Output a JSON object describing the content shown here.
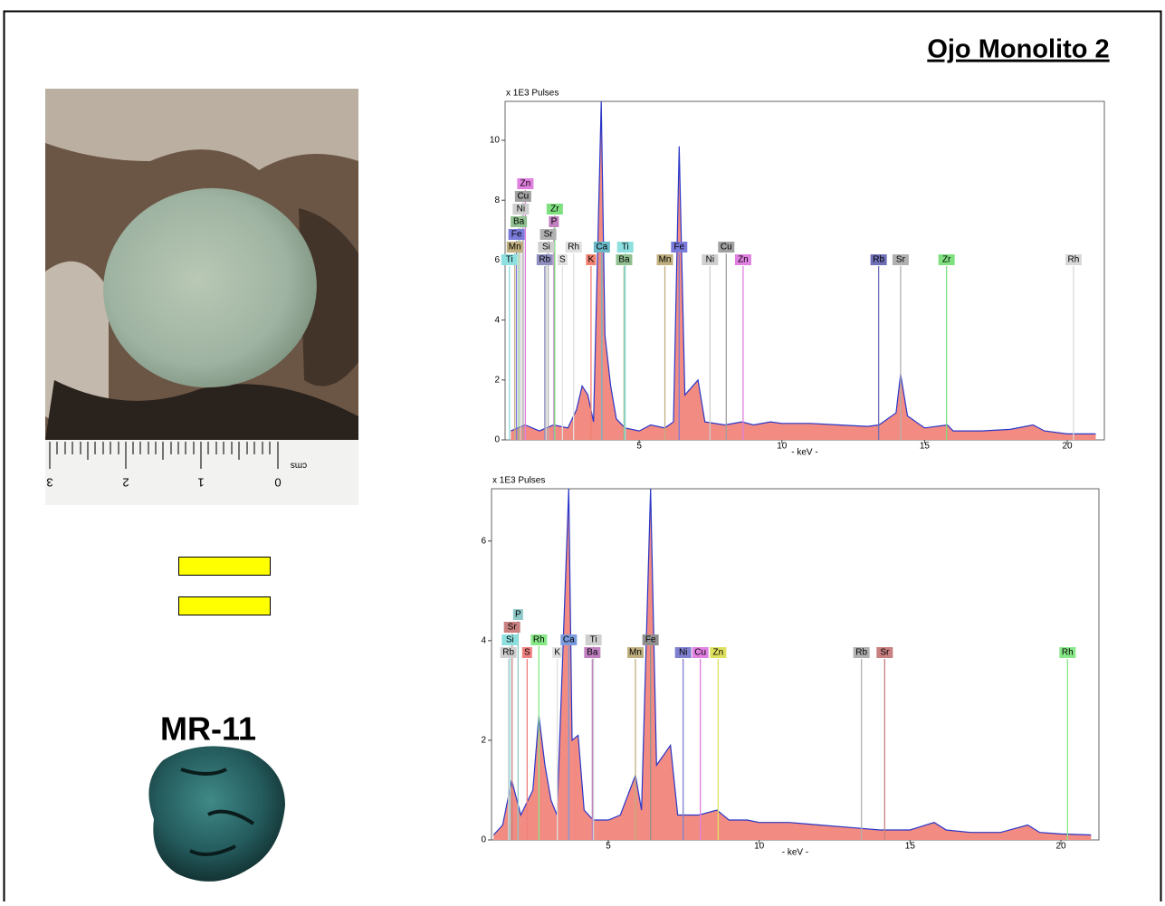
{
  "title": "Ojo Monolito 2",
  "sample_label": "MR-11",
  "ruler": {
    "unit": "cms",
    "labels": [
      "0",
      "1",
      "2",
      "3"
    ]
  },
  "chart_data": [
    {
      "type": "spectrum",
      "y_label": "x 1E3 Pulses",
      "x_label": "- keV -",
      "xlim": [
        0.3,
        21.3
      ],
      "ylim": [
        0,
        11.3
      ],
      "xticks": [
        5,
        10,
        15,
        20
      ],
      "yticks": [
        0,
        2,
        4,
        6,
        8,
        10
      ],
      "x": [
        0.5,
        1,
        1.5,
        2,
        2.5,
        2.8,
        3.0,
        3.2,
        3.4,
        3.67,
        3.8,
        4.0,
        4.2,
        4.5,
        5,
        5.4,
        5.9,
        6.2,
        6.4,
        6.6,
        7.06,
        7.3,
        8,
        8.6,
        9,
        9.6,
        10,
        11,
        12,
        13,
        13.4,
        14.0,
        14.16,
        14.4,
        15,
        15.8,
        16,
        17,
        18,
        18.8,
        19.2,
        20,
        21
      ],
      "series": [
        {
          "color": "#f28b82",
          "line_color": "#2a36c8",
          "values": [
            0.3,
            0.5,
            0.3,
            0.5,
            0.4,
            1.0,
            1.8,
            1.5,
            0.6,
            11.3,
            3.5,
            1.8,
            0.7,
            0.4,
            0.3,
            0.5,
            0.4,
            0.6,
            9.8,
            1.5,
            2.0,
            0.6,
            0.5,
            0.6,
            0.5,
            0.6,
            0.55,
            0.55,
            0.5,
            0.45,
            0.5,
            0.9,
            2.2,
            0.8,
            0.4,
            0.5,
            0.3,
            0.3,
            0.35,
            0.5,
            0.3,
            0.2,
            0.2
          ]
        }
      ],
      "markers": [
        {
          "label": "Ti",
          "x": 0.45,
          "color": "#8ee0e0"
        },
        {
          "label": "Mn",
          "x": 0.64,
          "color": "#c0b080"
        },
        {
          "label": "Fe",
          "x": 0.7,
          "color": "#7b7bdc"
        },
        {
          "label": "Ba",
          "x": 0.78,
          "color": "#90c090"
        },
        {
          "label": "Ni",
          "x": 0.85,
          "color": "#cfcfcf"
        },
        {
          "label": "Cu",
          "x": 0.93,
          "color": "#a0a0a0"
        },
        {
          "label": "Zn",
          "x": 1.01,
          "color": "#e080e0"
        },
        {
          "label": "Rb",
          "x": 1.69,
          "color": "#9090c0"
        },
        {
          "label": "Si",
          "x": 1.74,
          "color": "#cfcfcf"
        },
        {
          "label": "Sr",
          "x": 1.81,
          "color": "#b0b0b0"
        },
        {
          "label": "P",
          "x": 2.01,
          "color": "#c080c0"
        },
        {
          "label": "Zr",
          "x": 2.04,
          "color": "#80e080"
        },
        {
          "label": "S",
          "x": 2.31,
          "color": "#e0e0e0"
        },
        {
          "label": "Rh",
          "x": 2.7,
          "color": "#e0e0e0"
        },
        {
          "label": "K",
          "x": 3.31,
          "color": "#f08070"
        },
        {
          "label": "Ca",
          "x": 3.69,
          "color": "#6ab8c8"
        },
        {
          "label": "Ba",
          "x": 4.47,
          "color": "#90c090"
        },
        {
          "label": "Ti",
          "x": 4.51,
          "color": "#8ee0e0"
        },
        {
          "label": "Mn",
          "x": 5.9,
          "color": "#c0b080"
        },
        {
          "label": "Fe",
          "x": 6.4,
          "color": "#7b7bdc"
        },
        {
          "label": "Ni",
          "x": 7.48,
          "color": "#cfcfcf"
        },
        {
          "label": "Cu",
          "x": 8.05,
          "color": "#a0a0a0"
        },
        {
          "label": "Zn",
          "x": 8.64,
          "color": "#e080e0"
        },
        {
          "label": "Rb",
          "x": 13.39,
          "color": "#7070b8"
        },
        {
          "label": "Sr",
          "x": 14.16,
          "color": "#b0b0b0"
        },
        {
          "label": "Zr",
          "x": 15.77,
          "color": "#80e080"
        },
        {
          "label": "Rh",
          "x": 20.22,
          "color": "#d8d8d8"
        }
      ]
    },
    {
      "type": "spectrum",
      "y_label": "x 1E3 Pulses",
      "x_label": "- keV -",
      "xlim": [
        1.13,
        21.26
      ],
      "ylim": [
        0,
        7.05
      ],
      "xticks": [
        5,
        10,
        15,
        20
      ],
      "yticks": [
        0,
        2,
        4,
        6
      ],
      "x": [
        1.2,
        1.5,
        1.8,
        2.1,
        2.5,
        2.7,
        2.9,
        3.1,
        3.3,
        3.69,
        3.8,
        4.0,
        4.2,
        4.5,
        5,
        5.4,
        5.9,
        6.1,
        6.4,
        6.6,
        7.06,
        7.3,
        8,
        8.6,
        9,
        9.6,
        10,
        11,
        12,
        13,
        14,
        15,
        15.8,
        16.2,
        17,
        18,
        18.9,
        19.3,
        20,
        21
      ],
      "series": [
        {
          "color": "#f28b82",
          "line_color": "#2a36c8",
          "values": [
            0.1,
            0.3,
            1.2,
            0.5,
            1.0,
            2.5,
            1.5,
            0.8,
            0.5,
            7.05,
            2.0,
            2.1,
            0.6,
            0.4,
            0.4,
            0.5,
            1.3,
            0.6,
            7.05,
            1.5,
            1.9,
            0.5,
            0.5,
            0.6,
            0.4,
            0.4,
            0.35,
            0.35,
            0.3,
            0.25,
            0.2,
            0.2,
            0.35,
            0.2,
            0.15,
            0.15,
            0.3,
            0.15,
            0.12,
            0.1
          ]
        }
      ],
      "markers": [
        {
          "label": "Rb",
          "x": 1.69,
          "color": "#cfcfcf"
        },
        {
          "label": "Si",
          "x": 1.74,
          "color": "#8ee0e0"
        },
        {
          "label": "Sr",
          "x": 1.81,
          "color": "#c98080"
        },
        {
          "label": "P",
          "x": 2.01,
          "color": "#90c8c8"
        },
        {
          "label": "S",
          "x": 2.31,
          "color": "#f08080"
        },
        {
          "label": "Rh",
          "x": 2.7,
          "color": "#88e888"
        },
        {
          "label": "K",
          "x": 3.31,
          "color": "#e0e0e0"
        },
        {
          "label": "Ca",
          "x": 3.69,
          "color": "#7b9bdc"
        },
        {
          "label": "Ba",
          "x": 4.47,
          "color": "#c080c0"
        },
        {
          "label": "Ti",
          "x": 4.51,
          "color": "#cfcfcf"
        },
        {
          "label": "Mn",
          "x": 5.9,
          "color": "#c0b080"
        },
        {
          "label": "Fe",
          "x": 6.4,
          "color": "#909090"
        },
        {
          "label": "Ni",
          "x": 7.48,
          "color": "#8080d0"
        },
        {
          "label": "Cu",
          "x": 8.05,
          "color": "#e080e0"
        },
        {
          "label": "Zn",
          "x": 8.64,
          "color": "#e0e060"
        },
        {
          "label": "Rb",
          "x": 13.39,
          "color": "#b0b0b0"
        },
        {
          "label": "Sr",
          "x": 14.16,
          "color": "#c98080"
        },
        {
          "label": "Rh",
          "x": 20.22,
          "color": "#88e888"
        }
      ]
    }
  ]
}
